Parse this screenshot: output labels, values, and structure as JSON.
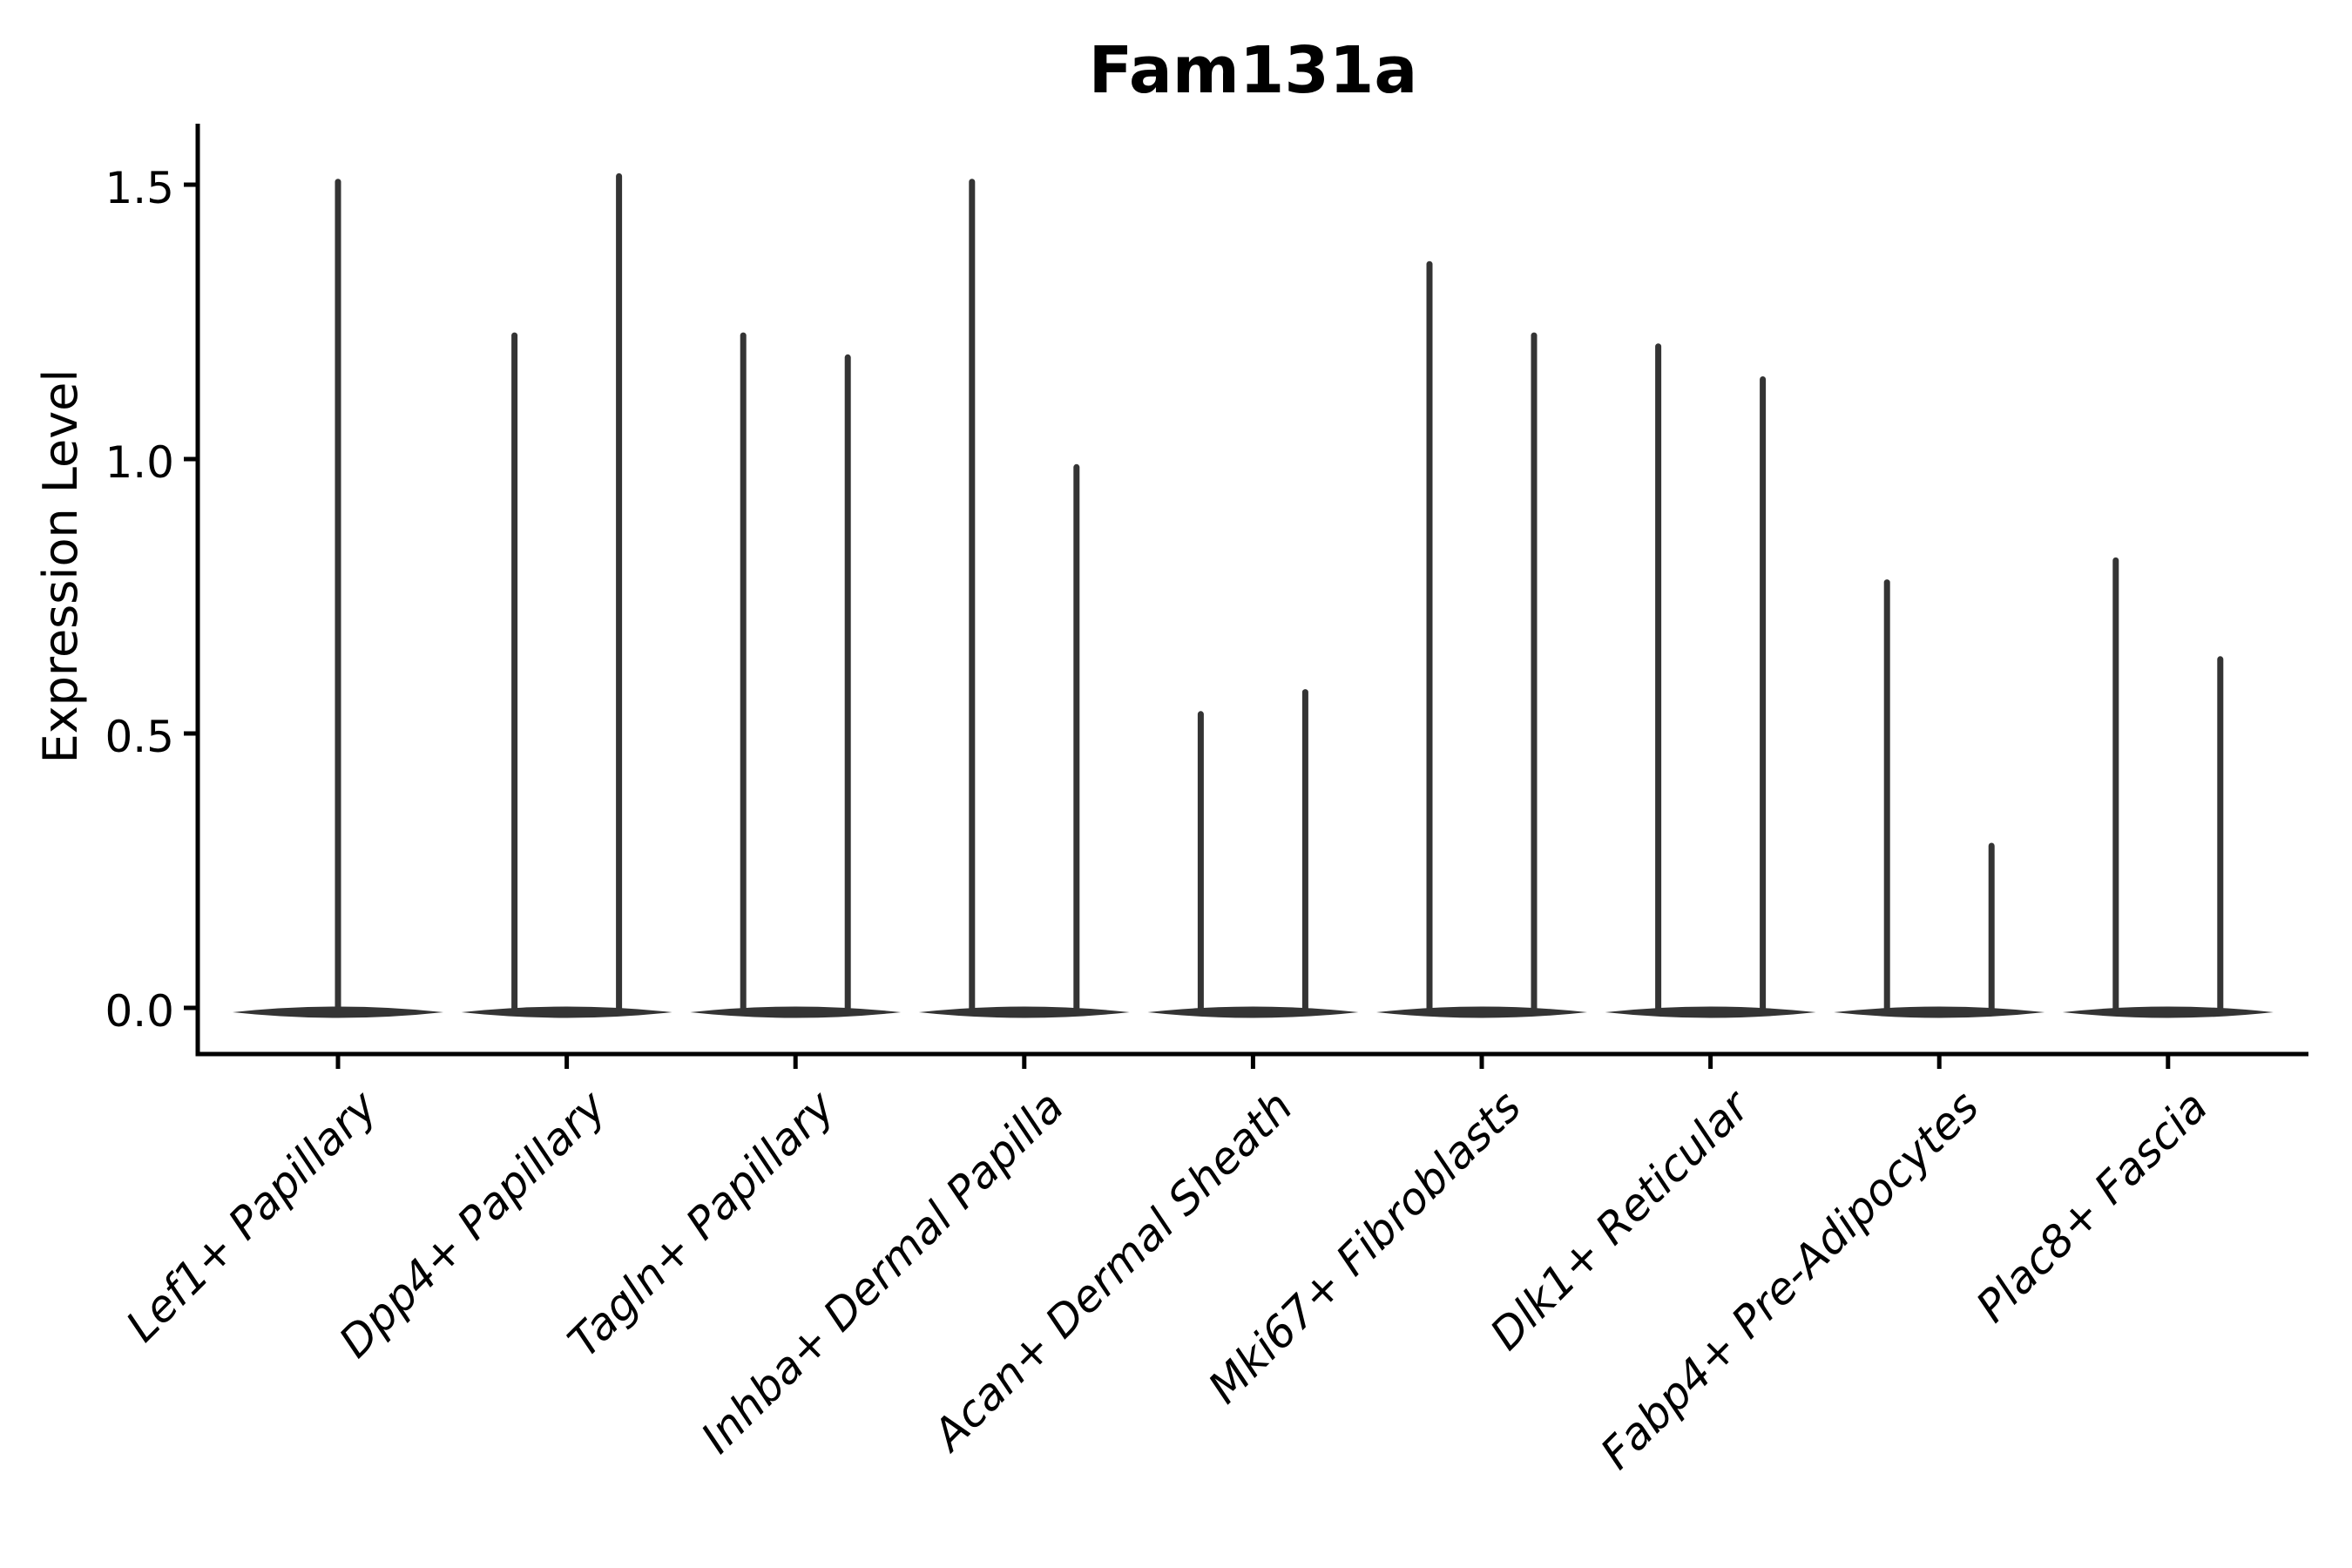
{
  "title": "Fam131a",
  "y_axis": {
    "label": "Expression Level",
    "ticks": [
      "0.0",
      "0.5",
      "1.0",
      "1.5"
    ],
    "tick_values": [
      0.0,
      0.5,
      1.0,
      1.5
    ]
  },
  "x_axis": {
    "categories": [
      "Lef1+ Papillary",
      "Dpp4+ Papillary",
      "Tagln+ Papillary",
      "Inhba+ Dermal Papilla",
      "Acan+ Dermal Sheath",
      "Mki67+ Fibroblasts",
      "Dlk1+ Reticular",
      "Fabp4+ Pre-Adipocytes",
      "Plac8+ Fascia"
    ]
  },
  "chart_data": {
    "type": "violin",
    "title": "Fam131a",
    "xlabel": "",
    "ylabel": "Expression Level",
    "ylim": [
      -0.08,
      1.61
    ],
    "yticks": [
      0.0,
      0.5,
      1.0,
      1.5
    ],
    "grid": false,
    "legend": "none",
    "categories": [
      "Lef1+ Papillary",
      "Dpp4+ Papillary",
      "Tagln+ Papillary",
      "Inhba+ Dermal Papilla",
      "Acan+ Dermal Sheath",
      "Mki67+ Fibroblasts",
      "Dlk1+ Reticular",
      "Fabp4+ Pre-Adipocytes",
      "Plac8+ Fascia"
    ],
    "series": [
      {
        "name": "Lef1+ Papillary",
        "violin_peak_expression": [
          1.51
        ]
      },
      {
        "name": "Dpp4+ Papillary",
        "violin_peak_expression": [
          1.23,
          1.52
        ]
      },
      {
        "name": "Tagln+ Papillary",
        "violin_peak_expression": [
          1.23,
          1.19
        ]
      },
      {
        "name": "Inhba+ Dermal Papilla",
        "violin_peak_expression": [
          1.51,
          0.99
        ]
      },
      {
        "name": "Acan+ Dermal Sheath",
        "violin_peak_expression": [
          0.54,
          0.58
        ]
      },
      {
        "name": "Mki67+ Fibroblasts",
        "violin_peak_expression": [
          1.36,
          1.23
        ]
      },
      {
        "name": "Dlk1+ Reticular",
        "violin_peak_expression": [
          1.21,
          1.15
        ]
      },
      {
        "name": "Fabp4+ Pre-Adipocytes",
        "violin_peak_expression": [
          0.78,
          0.3
        ]
      },
      {
        "name": "Plac8+ Fascia",
        "violin_peak_expression": [
          0.82,
          0.64
        ]
      }
    ],
    "baseline_expression": 0.0
  },
  "colors": {
    "violin": "#343434",
    "axis": "#000000",
    "text": "#000000",
    "background": "#ffffff"
  }
}
